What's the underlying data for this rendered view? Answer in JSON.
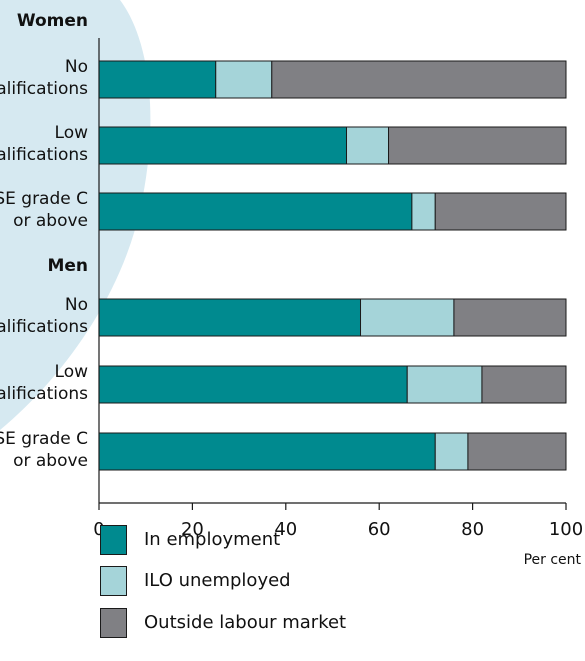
{
  "chart_data": {
    "type": "bar",
    "orientation": "horizontal",
    "stacked": true,
    "groups": [
      {
        "name": "Women",
        "categories": [
          [
            "No",
            "qualifications"
          ],
          [
            "Low",
            "qualifications"
          ],
          [
            "GCSE grade C",
            "or above"
          ]
        ]
      },
      {
        "name": "Men",
        "categories": [
          [
            "No",
            "qualifications"
          ],
          [
            "Low",
            "qualifications"
          ],
          [
            "GCSE grade C",
            "or above"
          ]
        ]
      }
    ],
    "series": [
      {
        "name": "In employment",
        "color": "#008a8f",
        "values": [
          25,
          53,
          67,
          56,
          66,
          72
        ]
      },
      {
        "name": "ILO unemployed",
        "color": "#a5d4d9",
        "values": [
          12,
          9,
          5,
          20,
          16,
          7
        ]
      },
      {
        "name": "Outside labour market",
        "color": "#808084",
        "values": [
          63,
          38,
          28,
          24,
          18,
          21
        ]
      }
    ],
    "xlabel": "Per cent",
    "xlim": [
      0,
      100
    ],
    "xticks": [
      0,
      20,
      40,
      60,
      80,
      100
    ],
    "grid": false,
    "legend_position": "bottom-left"
  }
}
